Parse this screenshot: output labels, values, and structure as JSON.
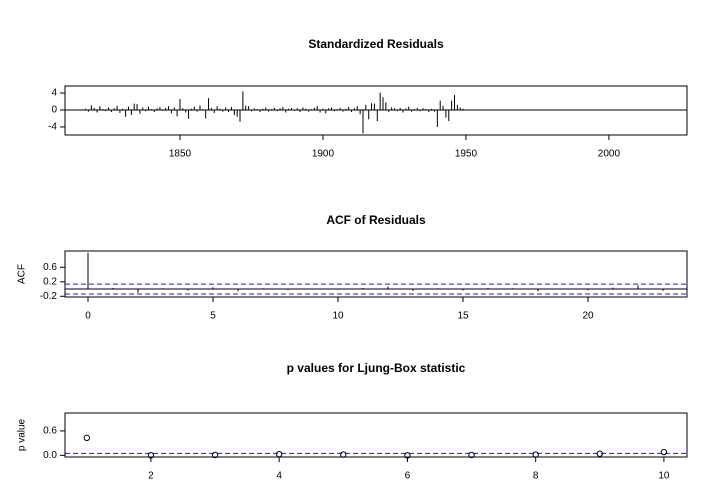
{
  "chart_data": [
    {
      "type": "spike",
      "title": "Standardized Residuals",
      "x": [
        1817,
        1818,
        1819,
        1820,
        1821,
        1822,
        1823,
        1824,
        1825,
        1826,
        1827,
        1828,
        1829,
        1830,
        1831,
        1832,
        1833,
        1834,
        1835,
        1836,
        1837,
        1838,
        1839,
        1840,
        1841,
        1842,
        1843,
        1844,
        1845,
        1846,
        1847,
        1848,
        1849,
        1850,
        1851,
        1852,
        1853,
        1854,
        1855,
        1856,
        1857,
        1858,
        1859,
        1860,
        1861,
        1862,
        1863,
        1864,
        1865,
        1866,
        1867,
        1868,
        1869,
        1870,
        1871,
        1872,
        1873,
        1874,
        1875,
        1876,
        1877,
        1878,
        1879,
        1880,
        1881,
        1882,
        1883,
        1884,
        1885,
        1886,
        1887,
        1888,
        1889,
        1890,
        1891,
        1892,
        1893,
        1894,
        1895,
        1896,
        1897,
        1898,
        1899,
        1900,
        1901,
        1902,
        1903,
        1904,
        1905,
        1906,
        1907,
        1908,
        1909,
        1910,
        1911,
        1912,
        1913,
        1914,
        1915,
        1916,
        1917,
        1918,
        1919,
        1920,
        1921,
        1922,
        1923,
        1924,
        1925,
        1926,
        1927,
        1928,
        1929,
        1930,
        1931,
        1932,
        1933,
        1934,
        1935,
        1936,
        1937,
        1938,
        1939,
        1940,
        1941,
        1942,
        1943,
        1944,
        1945,
        1946,
        1947,
        1948,
        1949,
        1950,
        1951,
        1952,
        1953,
        1954,
        1955,
        1956,
        1957,
        1958,
        1959,
        1960,
        1961,
        1962,
        1963,
        1964,
        1965,
        1966,
        1967,
        1968,
        1969,
        1970,
        1971,
        1972,
        1973,
        1974,
        1975,
        1976,
        1977,
        1978,
        1979,
        1980,
        1981,
        1982,
        1983,
        1984,
        1985,
        1986,
        1987,
        1988,
        1989,
        1990,
        1991,
        1992,
        1993,
        1994,
        1995,
        1996,
        1997,
        1998,
        1999,
        2000,
        2001,
        2002,
        2003,
        2004,
        2005,
        2006,
        2007,
        2008,
        2009,
        2010,
        2011,
        2012,
        2013,
        2014,
        2015,
        2016,
        2017,
        2018,
        2019,
        2020
      ],
      "values": [
        0.3,
        -0.4,
        1.1,
        0.5,
        -0.6,
        0.9,
        0.2,
        -0.3,
        0.6,
        -0.5,
        0.4,
        1.0,
        -0.7,
        0.3,
        -1.6,
        0.8,
        -1.2,
        1.5,
        1.4,
        -0.9,
        0.6,
        -0.3,
        0.8,
        0.2,
        -0.5,
        0.4,
        0.7,
        -0.2,
        0.5,
        0.9,
        -0.8,
        0.6,
        -1.5,
        2.6,
        0.4,
        -0.6,
        -2.1,
        0.3,
        0.8,
        -0.4,
        1.1,
        0.2,
        -2.0,
        2.8,
        0.5,
        -0.7,
        0.9,
        0.3,
        -0.4,
        0.6,
        -0.5,
        0.7,
        -1.2,
        -1.6,
        -2.8,
        4.4,
        1.0,
        0.9,
        -0.3,
        0.4,
        0.2,
        -0.5,
        0.3,
        0.6,
        -0.4,
        0.2,
        0.5,
        -0.3,
        0.4,
        0.7,
        -0.6,
        0.3,
        0.5,
        -0.2,
        0.4,
        -0.5,
        0.6,
        0.3,
        -0.4,
        0.2,
        0.5,
        0.9,
        -0.6,
        0.3,
        -0.8,
        0.4,
        0.6,
        -0.3,
        0.2,
        0.5,
        -0.4,
        0.3,
        0.7,
        -0.5,
        0.4,
        0.9,
        -1.0,
        -5.5,
        1.2,
        -2.2,
        1.6,
        1.5,
        -2.6,
        4.1,
        3.0,
        1.8,
        -0.5,
        0.6,
        0.4,
        -0.3,
        0.5,
        -0.6,
        0.3,
        0.8,
        -0.4,
        0.2,
        0.5,
        -0.3,
        0.4,
        0.2,
        -0.5,
        0.3,
        -0.4,
        -4.0,
        2.2,
        1.0,
        -1.8,
        -2.6,
        2.2,
        3.5,
        1.2,
        0.6,
        0.3,
        0.1,
        0.1,
        0.05,
        0.1,
        0.05,
        0.1,
        0.1,
        0.05,
        0.1,
        0.05,
        0.1,
        0.1,
        0.05,
        0.1,
        0.05,
        0.1,
        0.1,
        0.05,
        0.1,
        0.05,
        0.1,
        0.1,
        0.05,
        0.1,
        0.05,
        0.1,
        0.1,
        0.05,
        0.1,
        0.05,
        0.1,
        0.1,
        0.05,
        0.1,
        0.05,
        0.1,
        0.1,
        0.05,
        0.1,
        0.05,
        0.1,
        0.1,
        0.05,
        0.1,
        0.05,
        0.1,
        0.1,
        0.05,
        0.1,
        0.05,
        0.1,
        0.1,
        0.05,
        0.1,
        0.05,
        0.1,
        0.1,
        0.05,
        0.1,
        0.05,
        0.1,
        0.1,
        0.05,
        0.1,
        0.05,
        0.1,
        0.1,
        0.05,
        0.1,
        0.05,
        0.1
      ],
      "color": "#000000",
      "xlim": [
        1809.8,
        2027.3
      ],
      "xticks": [
        1850,
        1900,
        1950,
        2000
      ],
      "ylim": [
        -5.9,
        5.65
      ],
      "yticks": [
        -4,
        0,
        4
      ],
      "hlines": [
        {
          "value": 0,
          "dashed": false,
          "color": "#000000"
        }
      ]
    },
    {
      "type": "spike",
      "title": "ACF of Residuals",
      "y_label": "ACF",
      "x": [
        0,
        1,
        2,
        3,
        4,
        5,
        6,
        7,
        8,
        9,
        10,
        11,
        12,
        13,
        14,
        15,
        16,
        17,
        18,
        19,
        20,
        21,
        22,
        23
      ],
      "values": [
        1,
        0.03,
        -0.1,
        0.02,
        -0.04,
        0.05,
        -0.06,
        0.02,
        -0.03,
        0.01,
        -0.02,
        0.03,
        0.07,
        -0.05,
        0.02,
        -0.04,
        0.03,
        0.02,
        -0.06,
        0.01,
        -0.03,
        0.04,
        0.1,
        -0.05
      ],
      "color": "#000000",
      "xlim": [
        -0.92,
        23.96
      ],
      "xticks": [
        0,
        5,
        10,
        15,
        20
      ],
      "ylim": [
        -0.22,
        1.05
      ],
      "yticks": [
        -0.2,
        0.2,
        0.6
      ],
      "hlines": [
        {
          "value": 0,
          "dashed": false,
          "color": "#000000"
        },
        {
          "value": 0.137,
          "dashed": true,
          "color": "#2222bb"
        },
        {
          "value": -0.137,
          "dashed": true,
          "color": "#2222bb"
        }
      ]
    },
    {
      "type": "scatter",
      "title": "p values for Ljung-Box statistic",
      "y_label": "p value",
      "x": [
        1,
        2,
        3,
        4,
        5,
        6,
        7,
        8,
        9,
        10
      ],
      "values": [
        0.43,
        0.0,
        0.01,
        0.03,
        0.02,
        0.0,
        0.01,
        0.02,
        0.04,
        0.08
      ],
      "color": "#000000",
      "xlim": [
        0.66,
        10.36
      ],
      "xticks": [
        2,
        4,
        6,
        8,
        10
      ],
      "ylim": [
        -0.04,
        1.04
      ],
      "yticks": [
        {
          "value": 0,
          "label": "0.0"
        },
        {
          "value": 0.6,
          "label": "0.6"
        }
      ],
      "hlines": [
        {
          "value": 0.05,
          "dashed": true,
          "color": "#2222bb"
        }
      ]
    }
  ]
}
